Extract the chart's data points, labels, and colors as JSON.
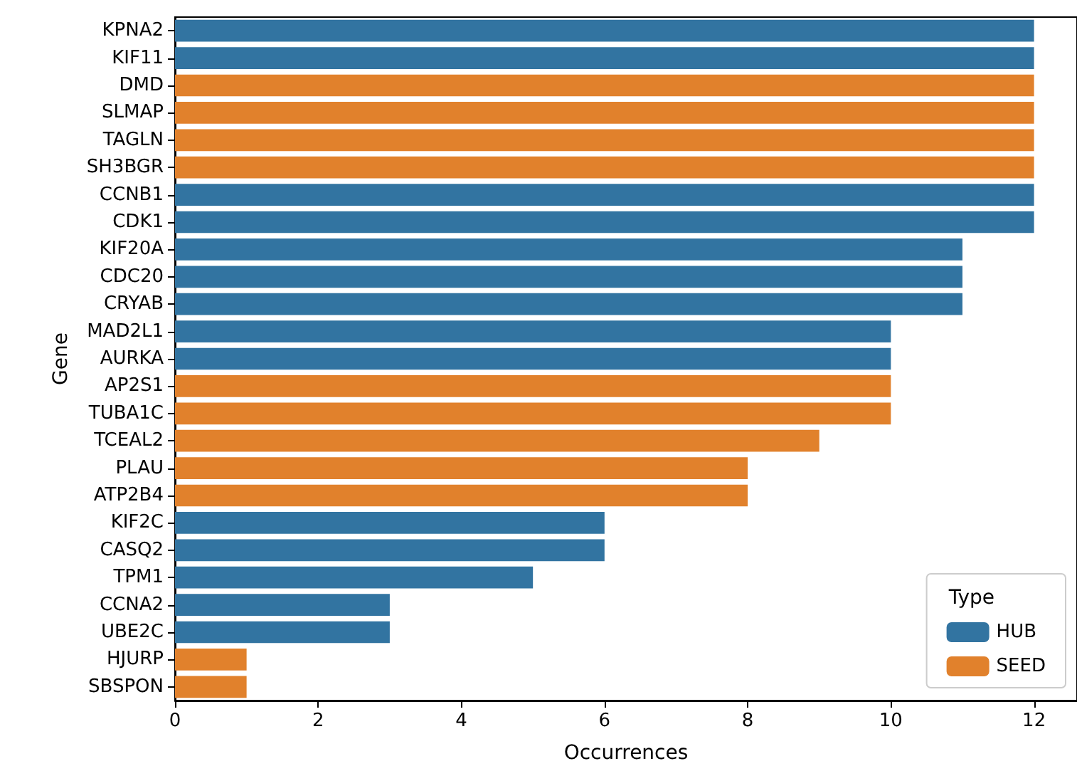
{
  "chart_data": {
    "type": "bar",
    "orientation": "horizontal",
    "xlabel": "Occurrences",
    "ylabel": "Gene",
    "legend_title": "Type",
    "legend": "bottom right",
    "grid": false,
    "categories": [
      "KPNA2",
      "KIF11",
      "DMD",
      "SLMAP",
      "TAGLN",
      "SH3BGR",
      "CCNB1",
      "CDK1",
      "KIF20A",
      "CDC20",
      "CRYAB",
      "MAD2L1",
      "AURKA",
      "AP2S1",
      "TUBA1C",
      "TCEAL2",
      "PLAU",
      "ATP2B4",
      "KIF2C",
      "CASQ2",
      "TPM1",
      "CCNA2",
      "UBE2C",
      "HJURP",
      "SBSPON"
    ],
    "series": [
      {
        "name": "HUB",
        "color": "#3274a1",
        "values": [
          12,
          12,
          null,
          null,
          null,
          null,
          12,
          12,
          11,
          11,
          11,
          10,
          10,
          null,
          null,
          null,
          null,
          null,
          6,
          6,
          5,
          3,
          3,
          null,
          null
        ]
      },
      {
        "name": "SEED",
        "color": "#e1812c",
        "values": [
          null,
          null,
          12,
          12,
          12,
          12,
          null,
          null,
          null,
          null,
          null,
          null,
          null,
          10,
          10,
          9,
          8,
          8,
          null,
          null,
          null,
          null,
          null,
          1,
          1
        ]
      }
    ],
    "xlim": [
      0,
      12.6
    ],
    "xticks": [
      0,
      2,
      4,
      6,
      8,
      10,
      12
    ]
  }
}
